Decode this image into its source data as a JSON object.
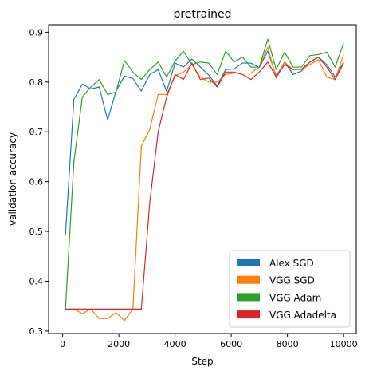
{
  "chart_data": {
    "type": "line",
    "title": "pretrained",
    "xlabel": "Step",
    "ylabel": "validation accuracy",
    "xlim": [
      -500,
      10450
    ],
    "ylim": [
      0.295,
      0.915
    ],
    "xticks": [
      0,
      2000,
      4000,
      6000,
      8000,
      10000
    ],
    "xtick_labels": [
      "0",
      "2000",
      "4000",
      "6000",
      "8000",
      "10000"
    ],
    "yticks": [
      0.3,
      0.4,
      0.5,
      0.6,
      0.7,
      0.8,
      0.9
    ],
    "ytick_labels": [
      "0.3",
      "0.4",
      "0.5",
      "0.6",
      "0.7",
      "0.8",
      "0.9"
    ],
    "grid": false,
    "legend_position": "lower right",
    "series": [
      {
        "name": "Alex SGD",
        "color": "#1f77b4",
        "x": [
          100,
          400,
          700,
          1000,
          1300,
          1600,
          1900,
          2200,
          2500,
          2800,
          3100,
          3400,
          3700,
          4000,
          4300,
          4600,
          4900,
          5200,
          5500,
          5800,
          6100,
          6400,
          6700,
          7000,
          7300,
          7600,
          7900,
          8200,
          8500,
          8800,
          9100,
          9400,
          9700,
          10000
        ],
        "y": [
          0.493,
          0.765,
          0.796,
          0.786,
          0.79,
          0.724,
          0.782,
          0.812,
          0.807,
          0.782,
          0.815,
          0.825,
          0.781,
          0.838,
          0.83,
          0.846,
          0.83,
          0.814,
          0.792,
          0.825,
          0.826,
          0.838,
          0.838,
          0.829,
          0.862,
          0.812,
          0.84,
          0.815,
          0.822,
          0.84,
          0.85,
          0.835,
          0.81,
          0.84
        ]
      },
      {
        "name": "VGG SGD",
        "color": "#ff7f0e",
        "x": [
          100,
          400,
          700,
          1000,
          1300,
          1600,
          1900,
          2200,
          2500,
          2800,
          3100,
          3400,
          3700,
          4000,
          4300,
          4600,
          4900,
          5200,
          5500,
          5800,
          6100,
          6400,
          6700,
          7000,
          7300,
          7600,
          7900,
          8200,
          8500,
          8800,
          9100,
          9400,
          9700,
          10000
        ],
        "y": [
          0.344,
          0.344,
          0.335,
          0.344,
          0.325,
          0.325,
          0.337,
          0.321,
          0.344,
          0.671,
          0.705,
          0.775,
          0.775,
          0.812,
          0.82,
          0.835,
          0.81,
          0.8,
          0.8,
          0.815,
          0.818,
          0.818,
          0.818,
          0.83,
          0.87,
          0.808,
          0.84,
          0.825,
          0.825,
          0.835,
          0.845,
          0.81,
          0.805,
          0.855
        ]
      },
      {
        "name": "VGG Adam",
        "color": "#2ca02c",
        "x": [
          100,
          400,
          700,
          1000,
          1300,
          1600,
          1900,
          2200,
          2500,
          2800,
          3100,
          3400,
          3700,
          4000,
          4300,
          4600,
          4900,
          5200,
          5500,
          5800,
          6100,
          6400,
          6700,
          7000,
          7300,
          7600,
          7900,
          8200,
          8500,
          8800,
          9100,
          9400,
          9700,
          10000
        ],
        "y": [
          0.344,
          0.64,
          0.77,
          0.79,
          0.805,
          0.775,
          0.78,
          0.843,
          0.82,
          0.805,
          0.825,
          0.84,
          0.81,
          0.842,
          0.862,
          0.835,
          0.84,
          0.838,
          0.815,
          0.862,
          0.84,
          0.85,
          0.83,
          0.83,
          0.886,
          0.825,
          0.86,
          0.83,
          0.83,
          0.853,
          0.855,
          0.86,
          0.83,
          0.878
        ]
      },
      {
        "name": "VGG Adadelta",
        "color": "#d62728",
        "x": [
          100,
          400,
          700,
          1000,
          1300,
          1600,
          1900,
          2200,
          2500,
          2800,
          3100,
          3400,
          3700,
          4000,
          4300,
          4600,
          4900,
          5200,
          5500,
          5800,
          6100,
          6400,
          6700,
          7000,
          7300,
          7600,
          7900,
          8200,
          8500,
          8800,
          9100,
          9400,
          9700,
          10000
        ],
        "y": [
          0.344,
          0.344,
          0.344,
          0.344,
          0.344,
          0.344,
          0.344,
          0.344,
          0.344,
          0.344,
          0.558,
          0.7,
          0.77,
          0.815,
          0.805,
          0.838,
          0.805,
          0.808,
          0.79,
          0.82,
          0.82,
          0.815,
          0.805,
          0.82,
          0.84,
          0.81,
          0.835,
          0.825,
          0.826,
          0.84,
          0.85,
          0.83,
          0.805,
          0.838
        ]
      }
    ]
  }
}
